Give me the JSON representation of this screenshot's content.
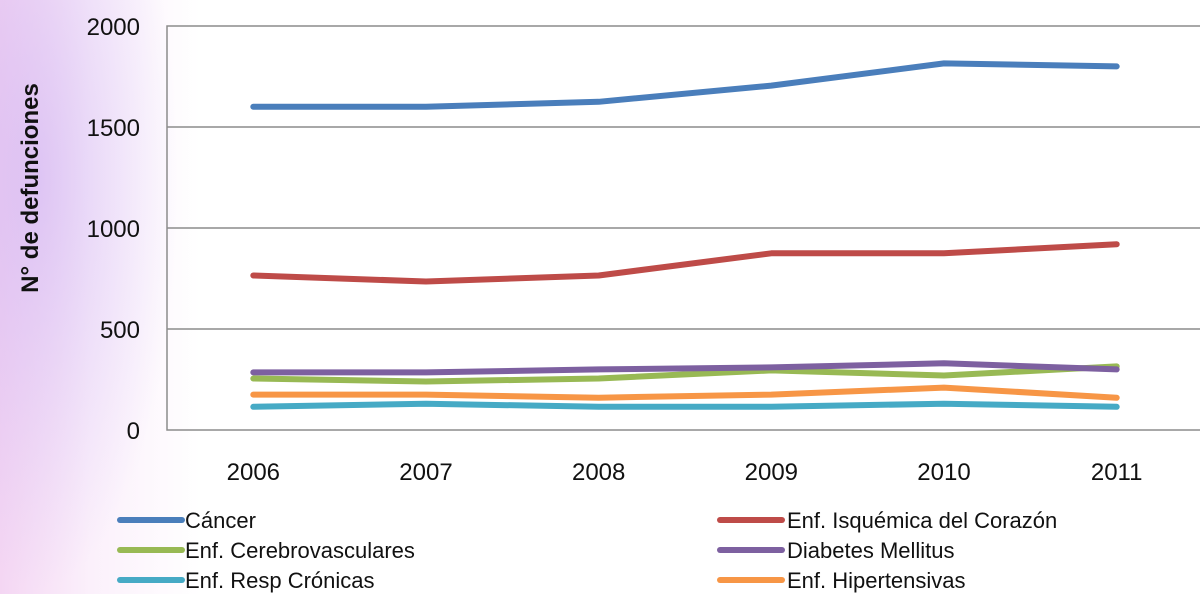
{
  "chart_data": {
    "type": "line",
    "title": "",
    "xlabel": "",
    "ylabel": "N° de  defunciones",
    "categories": [
      "2006",
      "2007",
      "2008",
      "2009",
      "2010",
      "2011"
    ],
    "ylim": [
      0,
      2000
    ],
    "yticks": [
      "0",
      "500",
      "1000",
      "1500",
      "2000"
    ],
    "grid": true,
    "legend_position": "bottom",
    "series": [
      {
        "name": "Cáncer",
        "color": "#4a7ebb",
        "values": [
          1600,
          1600,
          1625,
          1705,
          1815,
          1800
        ]
      },
      {
        "name": "Enf. Isquémica del Corazón",
        "color": "#be4b48",
        "values": [
          765,
          735,
          765,
          875,
          875,
          920
        ]
      },
      {
        "name": "Enf. Cerebrovasculares",
        "color": "#98b954",
        "values": [
          255,
          240,
          255,
          295,
          270,
          315
        ]
      },
      {
        "name": "Diabetes Mellitus",
        "color": "#7d60a0",
        "values": [
          285,
          285,
          300,
          310,
          330,
          300
        ]
      },
      {
        "name": "Enf. Resp Crónicas",
        "color": "#46aac5",
        "values": [
          115,
          130,
          115,
          115,
          130,
          115
        ]
      },
      {
        "name": "Enf. Hipertensivas",
        "color": "#f79646",
        "values": [
          175,
          175,
          160,
          175,
          210,
          160
        ]
      }
    ]
  }
}
